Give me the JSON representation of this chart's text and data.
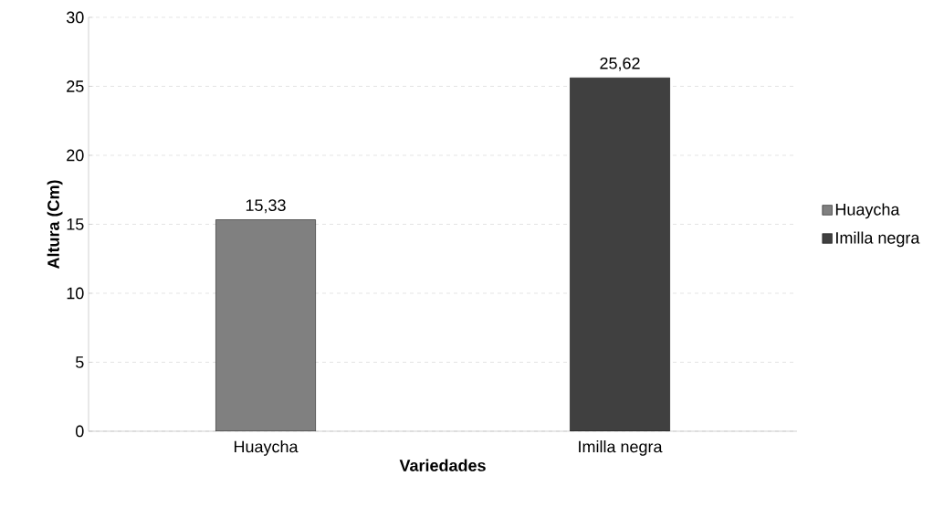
{
  "chart_data": {
    "type": "bar",
    "xlabel": "Variedades",
    "ylabel": "Altura (Cm)",
    "categories": [
      "Huaycha",
      "Imilla negra"
    ],
    "series": [
      {
        "name": "Huaycha",
        "color": "#808080",
        "values": [
          15.33,
          null
        ],
        "value_labels": [
          "15,33",
          null
        ]
      },
      {
        "name": "Imilla negra",
        "color": "#404040",
        "values": [
          null,
          25.62
        ],
        "value_labels": [
          null,
          "25,62"
        ]
      }
    ],
    "ylim": [
      0,
      30
    ],
    "yticks": [
      0,
      5,
      10,
      15,
      20,
      25,
      30
    ],
    "grid": "y",
    "legend": "right"
  }
}
